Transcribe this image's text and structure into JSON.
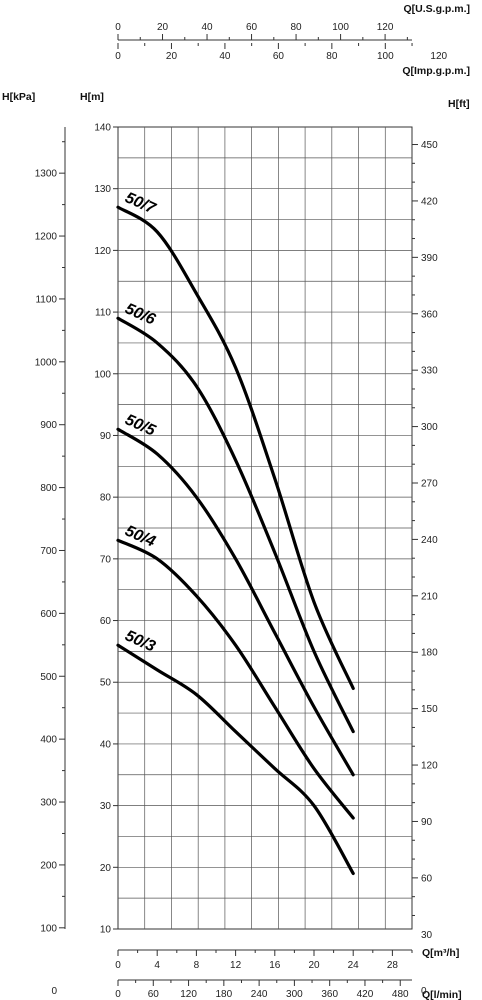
{
  "chart_data": {
    "type": "line",
    "title": "",
    "axes": {
      "q_m3h": {
        "label": "Q[m³/h]",
        "ticks": [
          0,
          4,
          8,
          12,
          16,
          20,
          24,
          28
        ],
        "range": [
          0,
          30
        ]
      },
      "q_lmin": {
        "label": "Q[l/min]",
        "ticks": [
          0,
          60,
          120,
          180,
          240,
          300,
          360,
          420,
          480
        ],
        "range": [
          0,
          500
        ]
      },
      "q_usgpm": {
        "label": "Q[U.S.g.p.m.]",
        "ticks": [
          0,
          20,
          40,
          60,
          80,
          100,
          120
        ],
        "range": [
          0,
          132.09
        ]
      },
      "q_impgpm": {
        "label": "Q[Imp.g.p.m.]",
        "ticks": [
          0,
          20,
          40,
          60,
          80,
          100,
          120
        ],
        "range": [
          0,
          109.98
        ]
      },
      "h_m": {
        "label": "H[m]",
        "ticks": [
          10,
          20,
          30,
          40,
          50,
          60,
          70,
          80,
          90,
          100,
          110,
          120,
          130,
          140
        ],
        "range": [
          10,
          140
        ]
      },
      "h_kpa": {
        "label": "H[kPa]",
        "ticks": [
          0,
          100,
          200,
          300,
          400,
          500,
          600,
          700,
          800,
          900,
          1000,
          1100,
          1200,
          1300
        ]
      },
      "h_ft": {
        "label": "H[ft]",
        "ticks": [
          0,
          30,
          60,
          90,
          120,
          150,
          180,
          210,
          240,
          270,
          300,
          330,
          360,
          390,
          420,
          450
        ]
      }
    },
    "grid": true,
    "series": [
      {
        "name": "50/7",
        "x": [
          0,
          4,
          8,
          12,
          16,
          20,
          24
        ],
        "y": [
          127,
          123,
          113,
          101,
          83,
          63,
          49
        ]
      },
      {
        "name": "50/6",
        "x": [
          0,
          4,
          8,
          12,
          16,
          20,
          24
        ],
        "y": [
          109,
          105,
          98,
          86,
          71,
          55,
          42
        ]
      },
      {
        "name": "50/5",
        "x": [
          0,
          4,
          8,
          12,
          16,
          20,
          24
        ],
        "y": [
          91,
          87,
          80,
          70,
          58,
          46,
          35
        ]
      },
      {
        "name": "50/4",
        "x": [
          0,
          4,
          8,
          12,
          16,
          20,
          24
        ],
        "y": [
          73,
          70,
          64,
          56,
          46,
          36,
          28
        ]
      },
      {
        "name": "50/3",
        "x": [
          0,
          4,
          8,
          12,
          16,
          20,
          24
        ],
        "y": [
          56,
          52,
          48,
          42,
          36,
          30,
          19
        ]
      }
    ]
  }
}
